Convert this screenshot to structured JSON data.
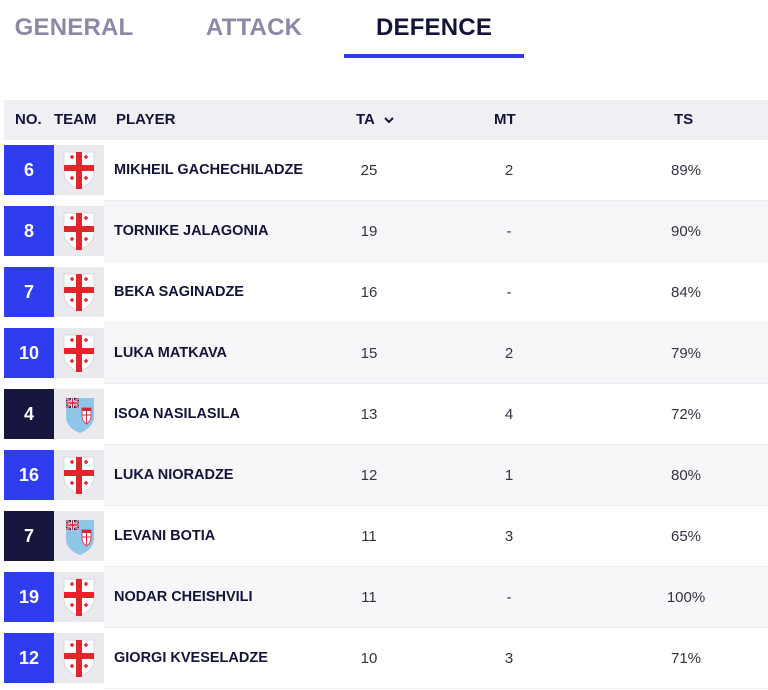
{
  "tabs": [
    {
      "label": "GENERAL",
      "active": false
    },
    {
      "label": "ATTACK",
      "active": false
    },
    {
      "label": "DEFENCE",
      "active": true
    }
  ],
  "columns": {
    "no": "NO.",
    "team": "TEAM",
    "player": "PLAYER",
    "ta": "TA",
    "mt": "MT",
    "ts": "TS"
  },
  "sort_icon": "chevron-down-icon",
  "colors": {
    "georgia": "#2f3cf0",
    "fiji": "#16163f",
    "accent": "#2f3cf0"
  },
  "rows": [
    {
      "no": "6",
      "team": "georgia",
      "player": "MIKHEIL GACHECHILADZE",
      "ta": "25",
      "mt": "2",
      "ts": "89%"
    },
    {
      "no": "8",
      "team": "georgia",
      "player": "TORNIKE JALAGONIA",
      "ta": "19",
      "mt": "-",
      "ts": "90%"
    },
    {
      "no": "7",
      "team": "georgia",
      "player": "BEKA SAGINADZE",
      "ta": "16",
      "mt": "-",
      "ts": "84%"
    },
    {
      "no": "10",
      "team": "georgia",
      "player": "LUKA MATKAVA",
      "ta": "15",
      "mt": "2",
      "ts": "79%"
    },
    {
      "no": "4",
      "team": "fiji",
      "player": "ISOA NASILASILA",
      "ta": "13",
      "mt": "4",
      "ts": "72%"
    },
    {
      "no": "16",
      "team": "georgia",
      "player": "LUKA NIORADZE",
      "ta": "12",
      "mt": "1",
      "ts": "80%"
    },
    {
      "no": "7",
      "team": "fiji",
      "player": "LEVANI BOTIA",
      "ta": "11",
      "mt": "3",
      "ts": "65%"
    },
    {
      "no": "19",
      "team": "georgia",
      "player": "NODAR CHEISHVILI",
      "ta": "11",
      "mt": "-",
      "ts": "100%"
    },
    {
      "no": "12",
      "team": "georgia",
      "player": "GIORGI KVESELADZE",
      "ta": "10",
      "mt": "3",
      "ts": "71%"
    }
  ]
}
